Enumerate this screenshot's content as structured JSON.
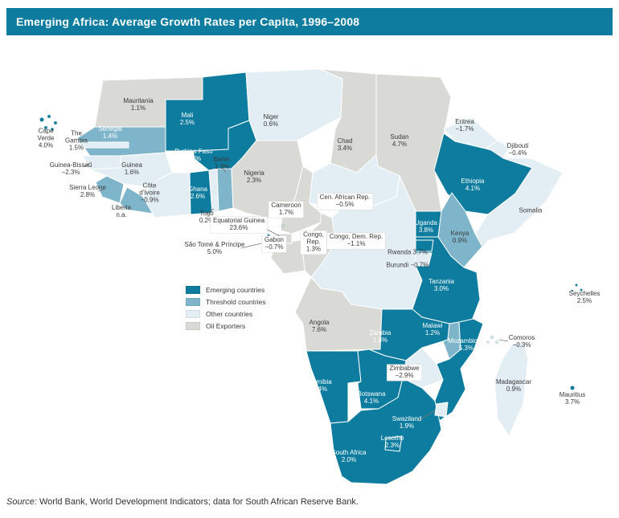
{
  "header": {
    "title": "Emerging Africa: Average Growth Rates per Capita, 1996–2008",
    "bg": "#0E7C9E"
  },
  "source": {
    "prefix": "Source:",
    "text": " World Bank, World Development Indicators; data for South African Reserve Bank."
  },
  "legend": {
    "colors": {
      "emerging": "#0E7C9E",
      "threshold": "#7FB5CA",
      "other": "#E3EEF4",
      "oil": "#D9DAD6"
    },
    "items": [
      {
        "label": "Emerging countries",
        "category": "emerging"
      },
      {
        "label": "Threshold countries",
        "category": "threshold"
      },
      {
        "label": "Other countries",
        "category": "other"
      },
      {
        "label": "Oil Exporters",
        "category": "oil"
      }
    ]
  },
  "countries": [
    {
      "id": "mauritania",
      "name": "Mauritania",
      "value": "1.1%",
      "category": "oil"
    },
    {
      "id": "senegal",
      "name": "Senegal",
      "value": "1.4%",
      "category": "threshold"
    },
    {
      "id": "gambia",
      "name": "The\nGambia",
      "value": "1.5%",
      "category": "other"
    },
    {
      "id": "cape-verde",
      "name": "Cape\nVerde",
      "value": "4.0%",
      "category": "emerging"
    },
    {
      "id": "guinea-bissau",
      "name": "Guinea-Bissau",
      "value": "−2.3%",
      "category": "other"
    },
    {
      "id": "guinea",
      "name": "Guinea",
      "value": "1.6%",
      "category": "other"
    },
    {
      "id": "sierra-leone",
      "name": "Sierra Leone",
      "value": "2.8%",
      "category": "threshold"
    },
    {
      "id": "liberia",
      "name": "Liberia",
      "value": "n.a.",
      "category": "threshold"
    },
    {
      "id": "cote-divoire",
      "name": "Côte\nd'Ivoire",
      "value": "−0.9%",
      "category": "other"
    },
    {
      "id": "mali",
      "name": "Mali",
      "value": "2.5%",
      "category": "emerging"
    },
    {
      "id": "burkina-faso",
      "name": "Burkina Faso",
      "value": "2.8%",
      "category": "emerging"
    },
    {
      "id": "ghana",
      "name": "Ghana",
      "value": "2.6%",
      "category": "emerging"
    },
    {
      "id": "togo",
      "name": "Togo",
      "value": "0.2%",
      "category": "other"
    },
    {
      "id": "benin",
      "name": "Benin",
      "value": "1.3%",
      "category": "threshold"
    },
    {
      "id": "niger",
      "name": "Niger",
      "value": "0.6%",
      "category": "other"
    },
    {
      "id": "nigeria",
      "name": "Nigeria",
      "value": "2.3%",
      "category": "oil"
    },
    {
      "id": "chad",
      "name": "Chad",
      "value": "3.4%",
      "category": "oil"
    },
    {
      "id": "sudan",
      "name": "Sudan",
      "value": "4.7%",
      "category": "oil"
    },
    {
      "id": "eritrea",
      "name": "Eritrea",
      "value": "−1.7%",
      "category": "other"
    },
    {
      "id": "djibouti",
      "name": "Djibouti",
      "value": "−0.4%",
      "category": "other"
    },
    {
      "id": "ethiopia",
      "name": "Ethiopia",
      "value": "4.1%",
      "category": "emerging"
    },
    {
      "id": "somalia",
      "name": "Somalia",
      "value": "",
      "category": "other"
    },
    {
      "id": "cameroon",
      "name": "Cameroon",
      "value": "1.7%",
      "category": "oil"
    },
    {
      "id": "central-african-rep",
      "name": "Cen. African Rep.",
      "value": "−0.5%",
      "category": "other"
    },
    {
      "id": "equatorial-guinea",
      "name": "Equatorial Guinea",
      "value": "23.6%",
      "category": "oil"
    },
    {
      "id": "sao-tome",
      "name": "São Tomé & Príncipe",
      "value": "5.0%",
      "category": "emerging"
    },
    {
      "id": "gabon",
      "name": "Gabon",
      "value": "−0.7%",
      "category": "oil"
    },
    {
      "id": "congo-rep",
      "name": "Congo,\nRep.",
      "value": "1.3%",
      "category": "oil"
    },
    {
      "id": "congo-dem-rep",
      "name": "Congo, Dem. Rep.",
      "value": "−1.1%",
      "category": "other"
    },
    {
      "id": "uganda",
      "name": "Uganda",
      "value": "3.8%",
      "category": "emerging"
    },
    {
      "id": "kenya",
      "name": "Kenya",
      "value": "0.9%",
      "category": "threshold"
    },
    {
      "id": "rwanda",
      "name": "Rwanda",
      "value": "3.7%",
      "category": "emerging"
    },
    {
      "id": "burundi",
      "name": "Burundi",
      "value": "−0.7%",
      "category": "other"
    },
    {
      "id": "tanzania",
      "name": "Tanzania",
      "value": "3.0%",
      "category": "emerging"
    },
    {
      "id": "seychelles",
      "name": "Seychelles",
      "value": "2.5%",
      "category": "emerging"
    },
    {
      "id": "angola",
      "name": "Angola",
      "value": "7.6%",
      "category": "oil"
    },
    {
      "id": "zambia",
      "name": "Zambia",
      "value": "1.8%",
      "category": "emerging"
    },
    {
      "id": "malawi",
      "name": "Malawi",
      "value": "1.2%",
      "category": "threshold"
    },
    {
      "id": "mozambique",
      "name": "Mozambique",
      "value": "5.3%",
      "category": "emerging"
    },
    {
      "id": "comoros",
      "name": "Comoros",
      "value": "−0.3%",
      "category": "other"
    },
    {
      "id": "zimbabwe",
      "name": "Zimbabwe",
      "value": "−2.9%",
      "category": "other"
    },
    {
      "id": "madagascar",
      "name": "Madagascar",
      "value": "0.9%",
      "category": "other"
    },
    {
      "id": "mauritius",
      "name": "Mauritius",
      "value": "3.7%",
      "category": "emerging"
    },
    {
      "id": "namibia",
      "name": "Namibia",
      "value": "2.4%",
      "category": "emerging"
    },
    {
      "id": "botswana",
      "name": "Botswana",
      "value": "4.1%",
      "category": "emerging"
    },
    {
      "id": "swaziland",
      "name": "Swaziland",
      "value": "1.9%",
      "category": "other"
    },
    {
      "id": "lesotho",
      "name": "Lesotho",
      "value": "2.3%",
      "category": "emerging"
    },
    {
      "id": "south-africa",
      "name": "South Africa",
      "value": "2.0%",
      "category": "emerging"
    }
  ]
}
